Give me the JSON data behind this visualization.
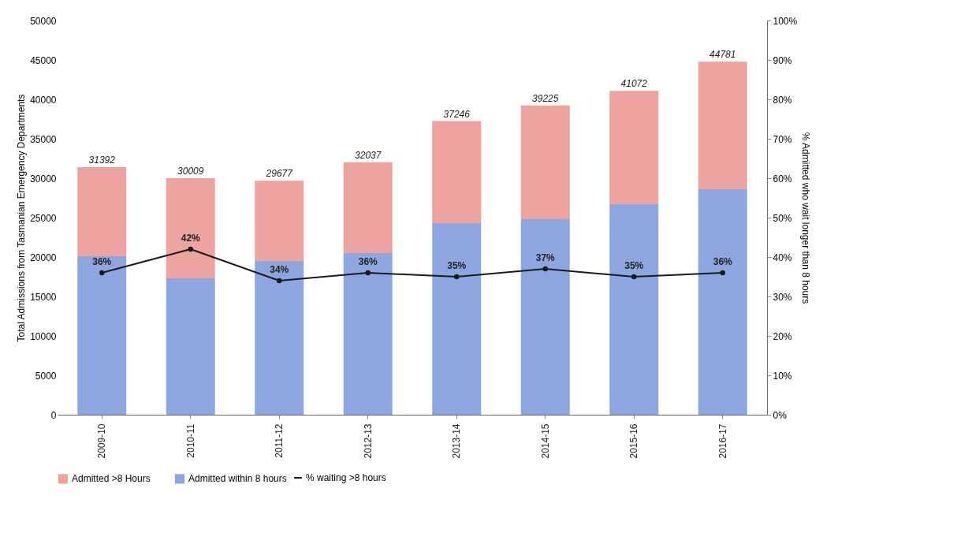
{
  "chart_data": {
    "type": "bar",
    "stacked": true,
    "categories": [
      "2009-10",
      "2010-11",
      "2011-12",
      "2012-13",
      "2013-14",
      "2014-15",
      "2015-16",
      "2016-17"
    ],
    "series": [
      {
        "name": "Admitted within 8 hours",
        "color": "#8ea6e0",
        "values": [
          20100,
          17300,
          19500,
          20500,
          24300,
          24800,
          26700,
          28600
        ]
      },
      {
        "name": "Admitted >8 Hours",
        "color": "#eda3a0",
        "values": [
          11292,
          12709,
          10177,
          11537,
          12946,
          14425,
          14372,
          16181
        ]
      },
      {
        "name": "% waiting >8 hours",
        "type": "line",
        "axis": "y2",
        "color": "#1a1a1a",
        "values": [
          36,
          42,
          34,
          36,
          35,
          37,
          35,
          36
        ],
        "value_labels": [
          "36%",
          "42%",
          "34%",
          "36%",
          "35%",
          "37%",
          "35%",
          "36%"
        ]
      }
    ],
    "totals": [
      "31392",
      "30009",
      "29677",
      "32037",
      "37246",
      "39225",
      "41072",
      "44781"
    ],
    "ylabel": "Total Admissions from Tasmanian Emergency Departments",
    "y2label": "% Admitted who wait longer than 8 hours",
    "ylim": [
      0,
      50000
    ],
    "yticks": [
      0,
      5000,
      10000,
      15000,
      20000,
      25000,
      30000,
      35000,
      40000,
      45000,
      50000
    ],
    "y2lim": [
      0,
      100
    ],
    "y2ticks": [
      {
        "value": 0,
        "label": "0%"
      },
      {
        "value": 10,
        "label": "10%"
      },
      {
        "value": 20,
        "label": "20%"
      },
      {
        "value": 30,
        "label": "30%"
      },
      {
        "value": 40,
        "label": "40%"
      },
      {
        "value": 50,
        "label": "50%"
      },
      {
        "value": 60,
        "label": "60%"
      },
      {
        "value": 70,
        "label": "70%"
      },
      {
        "value": 80,
        "label": "80%"
      },
      {
        "value": 90,
        "label": "90%"
      },
      {
        "value": 100,
        "label": "100%"
      }
    ],
    "marker": "circle",
    "legend": "bottom"
  }
}
